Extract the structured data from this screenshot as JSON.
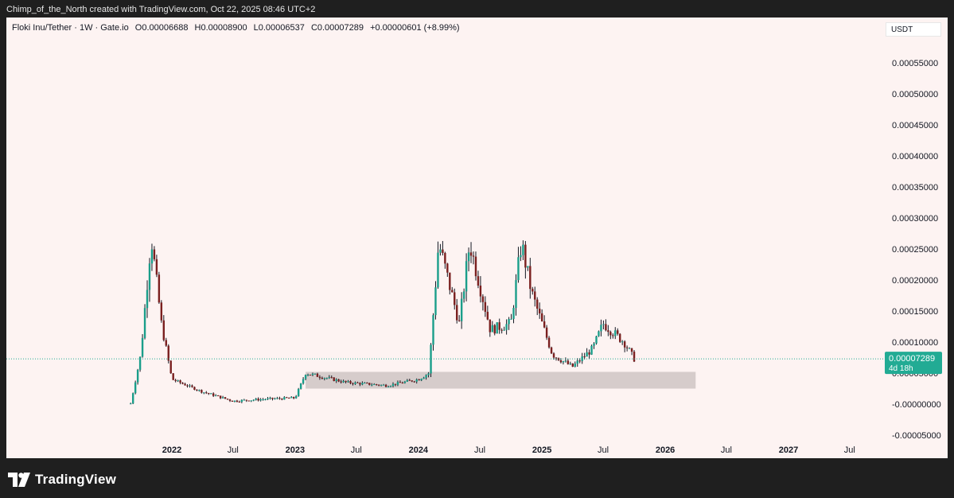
{
  "header": {
    "attribution": "Chimp_of_the_North created with TradingView.com, Oct 22, 2025 08:46 UTC+2"
  },
  "legend": {
    "symbol": "Floki Inu/Tether · 1W · Gate.io",
    "open": "O0.00006688",
    "high": "H0.00008900",
    "low": "L0.00006537",
    "close": "C0.00007289",
    "change": "+0.00000601 (+8.99%)"
  },
  "price_scale": {
    "currency": "USDT"
  },
  "last_price": {
    "value": "0.00007289",
    "countdown": "4d 18h"
  },
  "footer": {
    "brand": "TradingView"
  },
  "colors": {
    "up": "#26a69a",
    "down": "#ef5350",
    "candle_body_up": "#1a9e8a",
    "candle_body_down": "#7a1f1f",
    "wick": "#131722",
    "zone": "#d6cccb",
    "last_price_badge": "#22ab94",
    "background": "#fdf3f2"
  },
  "chart_data": {
    "type": "candlestick",
    "timeframe": "1W",
    "ylim": [
      -6e-05,
      0.0006
    ],
    "y_ticks": [
      "0.00055000",
      "0.00050000",
      "0.00045000",
      "0.00040000",
      "0.00035000",
      "0.00030000",
      "0.00025000",
      "0.00020000",
      "0.00015000",
      "0.00010000",
      "0.00005000",
      "-0.00000000",
      "-0.00005000"
    ],
    "x_ticks": [
      "2022",
      "Jul",
      "2023",
      "Jul",
      "2024",
      "Jul",
      "2025",
      "Jul",
      "2026",
      "Jul",
      "2027",
      "Jul"
    ],
    "support_zone": {
      "low": 2.5e-05,
      "high": 5.2e-05,
      "from": "2023-02",
      "to": "2026-04"
    },
    "last_close": 7.289e-05,
    "approx_path": [
      [
        "2021-09",
        0.0
      ],
      [
        "2021-10",
        8e-05
      ],
      [
        "2021-11",
        0.00027
      ],
      [
        "2021-12",
        0.00013
      ],
      [
        "2022-01",
        4e-05
      ],
      [
        "2022-04",
        2e-05
      ],
      [
        "2022-07",
        5e-06
      ],
      [
        "2022-10",
        8e-06
      ],
      [
        "2023-01",
        1e-05
      ],
      [
        "2023-02",
        5e-05
      ],
      [
        "2023-06",
        3.5e-05
      ],
      [
        "2023-10",
        3e-05
      ],
      [
        "2024-01",
        4e-05
      ],
      [
        "2024-02",
        5e-05
      ],
      [
        "2024-03",
        0.00026
      ],
      [
        "2024-05",
        0.00013
      ],
      [
        "2024-06",
        0.00026
      ],
      [
        "2024-08",
        0.00012
      ],
      [
        "2024-10",
        0.00013
      ],
      [
        "2024-11",
        0.00026
      ],
      [
        "2024-12",
        0.00018
      ],
      [
        "2025-02",
        8e-05
      ],
      [
        "2025-04",
        6e-05
      ],
      [
        "2025-06",
        9e-05
      ],
      [
        "2025-07",
        0.00013
      ],
      [
        "2025-09",
        0.0001
      ],
      [
        "2025-10",
        7.3e-05
      ]
    ]
  }
}
